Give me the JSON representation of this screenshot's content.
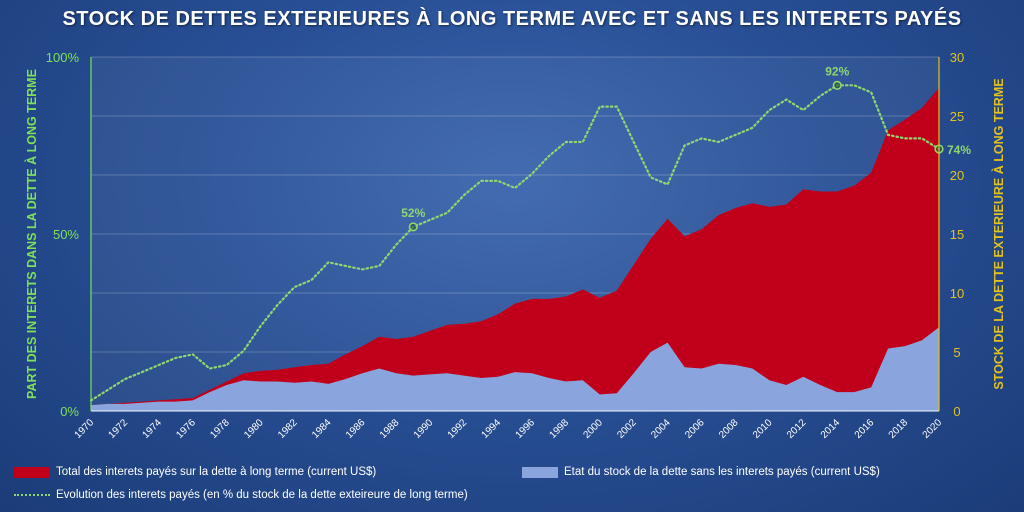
{
  "title": "STOCK DE DETTES EXTERIEURES À LONG TERME AVEC ET SANS LES INTERETS PAYÉS",
  "colors": {
    "interest_area": "#c0001a",
    "stock_area": "#8aa5de",
    "pct_line": "#8fd76e",
    "left_axis_text": "#7fe05a",
    "right_axis_text": "#e3c21b"
  },
  "legend": {
    "interest": "Total des interets payés sur la dette à long terme (current US$)",
    "stock": "Etat du stock de la dette sans les interets payés (current US$)",
    "pct": "Evolution des interets payés (en % du stock de la dette exteireure de long terme)"
  },
  "chart_data": {
    "type": "area",
    "title": "STOCK DE DETTES EXTERIEURES À LONG TERME AVEC ET SANS LES INTERETS PAYÉS",
    "x": [
      1970,
      1971,
      1972,
      1973,
      1974,
      1975,
      1976,
      1977,
      1978,
      1979,
      1980,
      1981,
      1982,
      1983,
      1984,
      1985,
      1986,
      1987,
      1988,
      1989,
      1990,
      1991,
      1992,
      1993,
      1994,
      1995,
      1996,
      1997,
      1998,
      1999,
      2000,
      2001,
      2002,
      2003,
      2004,
      2005,
      2006,
      2007,
      2008,
      2009,
      2010,
      2011,
      2012,
      2013,
      2014,
      2015,
      2016,
      2017,
      2018,
      2019,
      2020
    ],
    "x_tick_labels": [
      "1970",
      "1972",
      "1974",
      "1976",
      "1978",
      "1980",
      "1982",
      "1984",
      "1986",
      "1988",
      "1990",
      "1992",
      "1994",
      "1996",
      "1998",
      "2000",
      "2002",
      "2004",
      "2006",
      "2008",
      "2010",
      "2012",
      "2014",
      "2016",
      "2018",
      "2020"
    ],
    "ylabel_left": "PART DES INTERETS DANS LA DETTE À LONG TERME",
    "ylabel_right": "STOCK DE LA DETTE EXTERIEURE À LONG TERME",
    "ylim_left": [
      0,
      100
    ],
    "y_left_ticks": [
      "0%",
      "50%",
      "100%"
    ],
    "ylim_right": [
      0,
      30
    ],
    "y_right_ticks": [
      "0",
      "5",
      "10",
      "15",
      "20",
      "25",
      "30"
    ],
    "series": [
      {
        "name": "Total des interets payés sur la dette à long terme (current US$)",
        "axis": "right",
        "values": [
          0.5,
          0.6,
          0.7,
          0.8,
          0.9,
          1.0,
          1.1,
          1.8,
          2.5,
          3.2,
          3.4,
          3.5,
          3.7,
          3.9,
          4.0,
          4.8,
          5.5,
          6.3,
          6.1,
          6.3,
          6.8,
          7.3,
          7.4,
          7.6,
          8.2,
          9.1,
          9.5,
          9.5,
          9.7,
          10.3,
          9.6,
          10.2,
          12.4,
          14.6,
          16.3,
          14.8,
          15.4,
          16.6,
          17.2,
          17.6,
          17.3,
          17.5,
          18.8,
          18.6,
          18.6,
          19.1,
          20.2,
          23.8,
          24.7,
          25.7,
          27.4
        ]
      },
      {
        "name": "Etat du stock de la dette sans les interets payés (current US$)",
        "axis": "right",
        "values": [
          0.5,
          0.6,
          0.6,
          0.7,
          0.8,
          0.8,
          0.9,
          1.6,
          2.2,
          2.6,
          2.5,
          2.5,
          2.4,
          2.5,
          2.3,
          2.7,
          3.2,
          3.6,
          3.2,
          3.0,
          3.1,
          3.2,
          3.0,
          2.8,
          2.9,
          3.3,
          3.2,
          2.8,
          2.5,
          2.6,
          1.4,
          1.5,
          3.2,
          5.0,
          5.8,
          3.7,
          3.6,
          4.0,
          3.9,
          3.6,
          2.6,
          2.2,
          2.9,
          2.2,
          1.6,
          1.6,
          2.0,
          5.3,
          5.5,
          6.0,
          7.1
        ]
      },
      {
        "name": "Evolution des interets payés (en % du stock de la dette exteireure de long terme)",
        "axis": "left",
        "style": "dotted",
        "values": [
          3,
          6,
          9,
          11,
          13,
          15,
          16,
          12,
          13,
          17,
          24,
          30,
          35,
          37,
          42,
          41,
          40,
          41,
          47,
          52,
          54,
          56,
          61,
          65,
          65,
          63,
          67,
          72,
          76,
          76,
          86,
          86,
          76,
          66,
          64,
          75,
          77,
          76,
          78,
          80,
          85,
          88,
          85,
          89,
          92,
          92,
          90,
          78,
          77,
          77,
          74
        ],
        "annotations": [
          {
            "x": 1989,
            "value": 52,
            "label": "52%"
          },
          {
            "x": 2014,
            "value": 92,
            "label": "92%"
          },
          {
            "x": 2020,
            "value": 74,
            "label": "74%"
          }
        ]
      }
    ],
    "grid": true,
    "legend_position": "bottom"
  }
}
